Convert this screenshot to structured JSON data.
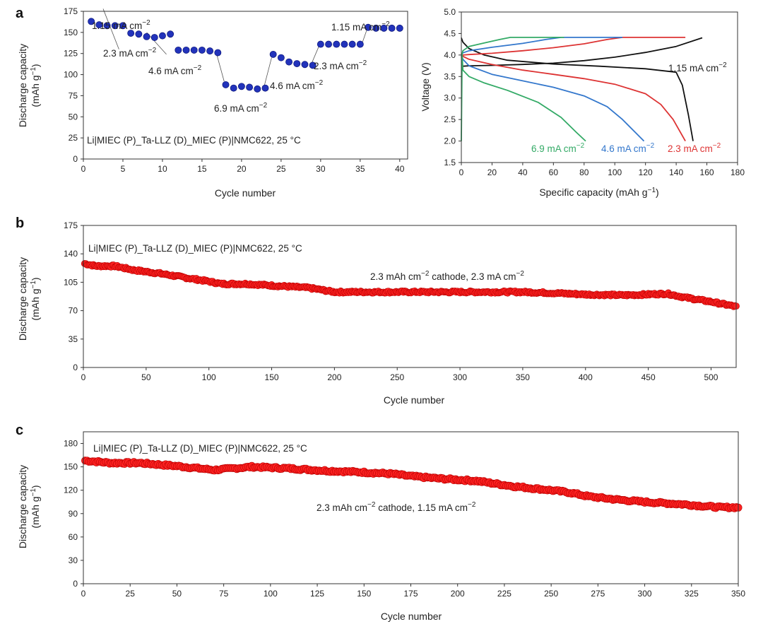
{
  "panels": {
    "a": {
      "label": "a",
      "cycling": {
        "ylabel_line1": "Discharge capacity",
        "ylabel_line2_base": "(mAh g",
        "ylabel_line2_sup": "−1",
        "ylabel_line2_end": ")",
        "xlabel": "Cycle number",
        "cell_text": "Li|MIEC (P)_Ta-LLZ (D)_MIEC (P)|NMC622, 25 °C",
        "xticks": [
          "0",
          "5",
          "10",
          "15",
          "20",
          "25",
          "30",
          "35",
          "40"
        ],
        "yticks": [
          "0",
          "25",
          "50",
          "75",
          "100",
          "125",
          "150",
          "175"
        ],
        "rate_labels": [
          {
            "text": "1.15 mA cm",
            "sup": "−2"
          },
          {
            "text": "2.3 mA cm",
            "sup": "−2"
          },
          {
            "text": "4.6 mA cm",
            "sup": "−2"
          },
          {
            "text": "6.9 mA cm",
            "sup": "−2"
          },
          {
            "text": "4.6 mA cm",
            "sup": "−2"
          },
          {
            "text": "2.3 mA cm",
            "sup": "−2"
          },
          {
            "text": "1.15 mA cm",
            "sup": "−2"
          }
        ]
      },
      "voltage": {
        "ylabel": "Voltage (V)",
        "xlabel_base": "Specific capacity (mAh g",
        "xlabel_sup": "−1",
        "xlabel_end": ")",
        "xticks": [
          "0",
          "20",
          "40",
          "60",
          "80",
          "100",
          "120",
          "140",
          "160",
          "180"
        ],
        "yticks": [
          "1.5",
          "2.0",
          "2.5",
          "3.0",
          "3.5",
          "4.0",
          "4.5",
          "5.0"
        ],
        "curve_labels": [
          {
            "text": "1.15 mA cm",
            "sup": "−2"
          },
          {
            "text": "6.9 mA cm",
            "sup": "−2"
          },
          {
            "text": "4.6 mA cm",
            "sup": "−2"
          },
          {
            "text": "2.3 mA cm",
            "sup": "−2"
          }
        ]
      }
    },
    "b": {
      "label": "b",
      "ylabel_line1": "Discharge capacity",
      "ylabel_line2_base": "(mAh g",
      "ylabel_line2_sup": "−1",
      "ylabel_line2_end": ")",
      "xlabel": "Cycle number",
      "cell_text": "Li|MIEC (P)_Ta-LLZ (D)_MIEC (P)|NMC622, 25 °C",
      "condition": {
        "p1": "2.3 mAh cm",
        "s1": "−2",
        "p2": " cathode, 2.3 mA cm",
        "s2": "−2"
      },
      "xticks": [
        "0",
        "50",
        "100",
        "150",
        "200",
        "250",
        "300",
        "350",
        "400",
        "450",
        "500"
      ],
      "yticks": [
        "0",
        "35",
        "70",
        "105",
        "140",
        "175"
      ]
    },
    "c": {
      "label": "c",
      "ylabel_line1": "Discharge capacity",
      "ylabel_line2_base": "(mAh g",
      "ylabel_line2_sup": "−1",
      "ylabel_line2_end": ")",
      "xlabel": "Cycle number",
      "cell_text": "Li|MIEC (P)_Ta-LLZ (D)_MIEC (P)|NMC622, 25 °C",
      "condition": {
        "p1": "2.3 mAh cm",
        "s1": "−2",
        "p2": " cathode, 1.15 mA cm",
        "s2": "−2"
      },
      "xticks": [
        "0",
        "25",
        "50",
        "75",
        "100",
        "125",
        "150",
        "175",
        "200",
        "225",
        "250",
        "275",
        "300",
        "325",
        "350"
      ],
      "yticks": [
        "0",
        "30",
        "60",
        "90",
        "120",
        "150",
        "180"
      ]
    }
  },
  "chart_data": [
    {
      "type": "scatter",
      "id": "a-rate",
      "title": "",
      "xlabel": "Cycle number",
      "ylabel": "Discharge capacity (mAh g−1)",
      "xlim": [
        0,
        41
      ],
      "ylim": [
        0,
        175
      ],
      "marker_color": "#2233bb",
      "x": [
        1,
        2,
        3,
        4,
        5,
        6,
        7,
        8,
        9,
        10,
        11,
        12,
        13,
        14,
        15,
        16,
        17,
        18,
        19,
        20,
        21,
        22,
        23,
        24,
        25,
        26,
        27,
        28,
        29,
        30,
        31,
        32,
        33,
        34,
        35,
        36,
        37,
        38,
        39,
        40
      ],
      "y": [
        163,
        159,
        158,
        158,
        158,
        149,
        148,
        145,
        144,
        146,
        148,
        129,
        129,
        129,
        129,
        128,
        126,
        88,
        84,
        86,
        85,
        83,
        84,
        124,
        120,
        115,
        113,
        112,
        111,
        136,
        136,
        136,
        136,
        136,
        136,
        156,
        155,
        155,
        155,
        155
      ]
    },
    {
      "type": "line",
      "id": "a-voltage",
      "title": "",
      "xlabel": "Specific capacity (mAh g−1)",
      "ylabel": "Voltage (V)",
      "xlim": [
        0,
        180
      ],
      "ylim": [
        1.5,
        5.0
      ],
      "series": [
        {
          "name": "1.15 mA cm−2 charge",
          "color": "#111111",
          "x": [
            0,
            1,
            5,
            20,
            40,
            60,
            80,
            100,
            120,
            140,
            157
          ],
          "y": [
            3.72,
            3.74,
            3.75,
            3.76,
            3.78,
            3.81,
            3.87,
            3.95,
            4.06,
            4.2,
            4.4
          ]
        },
        {
          "name": "1.15 mA cm−2 discharge",
          "color": "#111111",
          "x": [
            0,
            1,
            5,
            15,
            30,
            60,
            90,
            120,
            140,
            144,
            148,
            151
          ],
          "y": [
            4.4,
            4.3,
            4.15,
            4.0,
            3.88,
            3.79,
            3.74,
            3.68,
            3.6,
            3.3,
            2.6,
            2.0
          ]
        },
        {
          "name": "2.3 mA cm−2 charge",
          "color": "#dd3333",
          "x": [
            0,
            1,
            5,
            20,
            40,
            60,
            80,
            95,
            105,
            146
          ],
          "y": [
            3.98,
            4.0,
            4.01,
            4.04,
            4.1,
            4.17,
            4.26,
            4.36,
            4.41,
            4.41
          ]
        },
        {
          "name": "2.3 mA cm−2 discharge",
          "color": "#dd3333",
          "x": [
            0,
            1,
            5,
            20,
            40,
            60,
            80,
            100,
            120,
            130,
            138,
            146
          ],
          "y": [
            4.03,
            3.97,
            3.9,
            3.78,
            3.65,
            3.55,
            3.45,
            3.32,
            3.1,
            2.85,
            2.5,
            2.0
          ]
        },
        {
          "name": "4.6 mA cm−2 charge",
          "color": "#3377cc",
          "x": [
            0,
            1,
            5,
            20,
            40,
            55,
            65,
            105
          ],
          "y": [
            4.0,
            4.05,
            4.1,
            4.18,
            4.27,
            4.36,
            4.41,
            4.41
          ]
        },
        {
          "name": "4.6 mA cm−2 discharge",
          "color": "#3377cc",
          "x": [
            0,
            1,
            5,
            20,
            40,
            60,
            80,
            95,
            105,
            112,
            119
          ],
          "y": [
            4.0,
            3.9,
            3.75,
            3.55,
            3.4,
            3.25,
            3.05,
            2.8,
            2.5,
            2.25,
            2.0
          ]
        },
        {
          "name": "6.9 mA cm−2 charge",
          "color": "#33aa66",
          "x": [
            0,
            1,
            5,
            15,
            25,
            32,
            67
          ],
          "y": [
            3.95,
            4.1,
            4.2,
            4.28,
            4.36,
            4.41,
            4.41
          ]
        },
        {
          "name": "6.9 mA cm−2 discharge",
          "color": "#33aa66",
          "x": [
            0,
            0.5,
            1,
            5,
            15,
            30,
            50,
            65,
            75,
            81
          ],
          "y": [
            2.0,
            4.0,
            3.65,
            3.5,
            3.35,
            3.18,
            2.9,
            2.55,
            2.2,
            2.0
          ]
        }
      ]
    },
    {
      "type": "scatter",
      "id": "b-long",
      "title": "",
      "xlabel": "Cycle number",
      "ylabel": "Discharge capacity (mAh g−1)",
      "xlim": [
        0,
        520
      ],
      "ylim": [
        0,
        175
      ],
      "marker_color": "#ff2222",
      "x": [
        1,
        10,
        25,
        40,
        60,
        80,
        100,
        110,
        130,
        150,
        170,
        180,
        200,
        250,
        300,
        350,
        370,
        400,
        430,
        450,
        465,
        480,
        500,
        520
      ],
      "y": [
        128,
        125,
        125,
        120,
        116,
        111,
        106,
        103,
        103,
        101,
        99,
        98,
        93,
        93,
        93,
        93,
        92,
        90,
        89,
        90,
        91,
        86,
        81,
        75
      ]
    },
    {
      "type": "scatter",
      "id": "c-long",
      "title": "",
      "xlabel": "Cycle number",
      "ylabel": "Discharge capacity (mAh g−1)",
      "xlim": [
        0,
        350
      ],
      "ylim": [
        0,
        195
      ],
      "marker_color": "#ff2222",
      "x": [
        1,
        15,
        30,
        50,
        70,
        90,
        110,
        130,
        150,
        165,
        175,
        190,
        210,
        230,
        250,
        260,
        270,
        285,
        300,
        320,
        340,
        350
      ],
      "y": [
        158,
        155,
        155,
        151,
        146,
        150,
        148,
        145,
        143,
        141,
        138,
        135,
        132,
        125,
        120,
        117,
        112,
        108,
        105,
        102,
        98,
        98
      ]
    }
  ]
}
